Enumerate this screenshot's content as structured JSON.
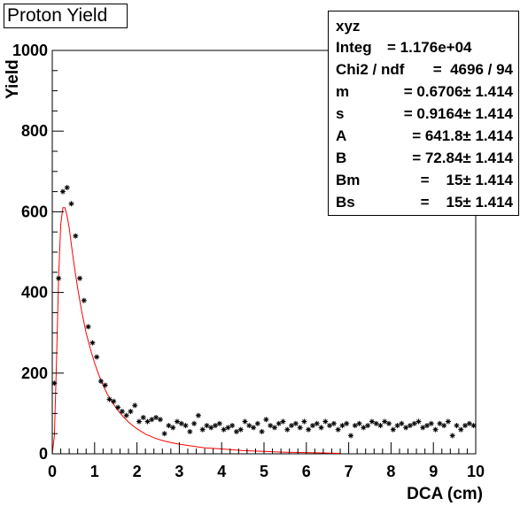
{
  "title": "Proton Yield",
  "stats": {
    "name": "xyz",
    "rows": [
      {
        "label": "Integ",
        "value": "= 1.176e+04"
      },
      {
        "label": "Chi2 / ndf",
        "value": "=  4696 / 94"
      },
      {
        "label": "m",
        "value": "= 0.6706± 1.414"
      },
      {
        "label": "s",
        "value": "= 0.9164± 1.414"
      },
      {
        "label": "A",
        "value": "= 641.8± 1.414"
      },
      {
        "label": "B",
        "value": "= 72.84± 1.414"
      },
      {
        "label": "Bm",
        "value": "=    15± 1.414"
      },
      {
        "label": "Bs",
        "value": "=    15± 1.414"
      }
    ]
  },
  "chart_data": {
    "type": "scatter",
    "xlabel": "DCA (cm)",
    "ylabel": "Yield",
    "xlim": [
      0,
      10
    ],
    "ylim": [
      0,
      1000
    ],
    "x_ticks": [
      "0",
      "1",
      "2",
      "3",
      "4",
      "5",
      "6",
      "7",
      "8",
      "9",
      "10"
    ],
    "y_ticks": [
      "0",
      "200",
      "400",
      "600",
      "800",
      "1000"
    ],
    "colors": {
      "points": "#000000",
      "fit": "#ff0000"
    },
    "points": {
      "x": [
        0.05,
        0.15,
        0.25,
        0.35,
        0.45,
        0.55,
        0.65,
        0.75,
        0.85,
        0.95,
        1.05,
        1.15,
        1.25,
        1.35,
        1.45,
        1.55,
        1.65,
        1.75,
        1.85,
        1.95,
        2.05,
        2.15,
        2.25,
        2.35,
        2.45,
        2.55,
        2.65,
        2.75,
        2.85,
        2.95,
        3.05,
        3.15,
        3.25,
        3.35,
        3.45,
        3.55,
        3.65,
        3.75,
        3.85,
        3.95,
        4.05,
        4.15,
        4.25,
        4.35,
        4.45,
        4.55,
        4.65,
        4.75,
        4.85,
        4.95,
        5.05,
        5.15,
        5.25,
        5.35,
        5.45,
        5.55,
        5.65,
        5.75,
        5.85,
        5.95,
        6.05,
        6.15,
        6.25,
        6.35,
        6.45,
        6.55,
        6.65,
        6.75,
        6.85,
        6.95,
        7.05,
        7.15,
        7.25,
        7.35,
        7.45,
        7.55,
        7.65,
        7.75,
        7.85,
        7.95,
        8.05,
        8.15,
        8.25,
        8.35,
        8.45,
        8.55,
        8.65,
        8.75,
        8.85,
        8.95,
        9.05,
        9.15,
        9.25,
        9.35,
        9.45,
        9.55,
        9.65,
        9.75,
        9.85,
        9.95
      ],
      "y": [
        175,
        435,
        650,
        660,
        620,
        540,
        435,
        380,
        315,
        275,
        240,
        180,
        170,
        135,
        130,
        115,
        105,
        95,
        105,
        120,
        80,
        90,
        80,
        85,
        90,
        85,
        50,
        70,
        65,
        80,
        75,
        70,
        55,
        75,
        95,
        60,
        70,
        65,
        70,
        75,
        60,
        65,
        70,
        55,
        60,
        80,
        70,
        65,
        75,
        55,
        85,
        70,
        65,
        75,
        80,
        60,
        70,
        75,
        65,
        80,
        60,
        70,
        75,
        65,
        80,
        70,
        75,
        60,
        70,
        75,
        45,
        70,
        75,
        65,
        70,
        80,
        75,
        70,
        80,
        75,
        60,
        70,
        75,
        65,
        70,
        75,
        80,
        65,
        70,
        75,
        60,
        75,
        70,
        80,
        45,
        70,
        60,
        70,
        75,
        70
      ]
    },
    "fit": {
      "label": "",
      "x": [
        0.0,
        0.05,
        0.1,
        0.15,
        0.2,
        0.25,
        0.3,
        0.35,
        0.4,
        0.45,
        0.5,
        0.6,
        0.7,
        0.8,
        0.9,
        1.0,
        1.1,
        1.2,
        1.3,
        1.4,
        1.5,
        1.6,
        1.7,
        1.8,
        1.9,
        2.0,
        2.2,
        2.4,
        2.6,
        2.8,
        3.0,
        3.3,
        3.6,
        4.0,
        4.5,
        5.0,
        5.5,
        6.0,
        6.5,
        6.8
      ],
      "y": [
        0,
        45,
        230,
        440,
        570,
        610,
        610,
        590,
        560,
        520,
        480,
        410,
        350,
        300,
        260,
        225,
        195,
        170,
        148,
        130,
        115,
        101,
        89,
        79,
        70,
        62,
        49,
        40,
        33,
        28,
        24,
        19,
        15,
        12,
        8,
        6,
        4,
        3,
        2,
        1
      ]
    }
  }
}
